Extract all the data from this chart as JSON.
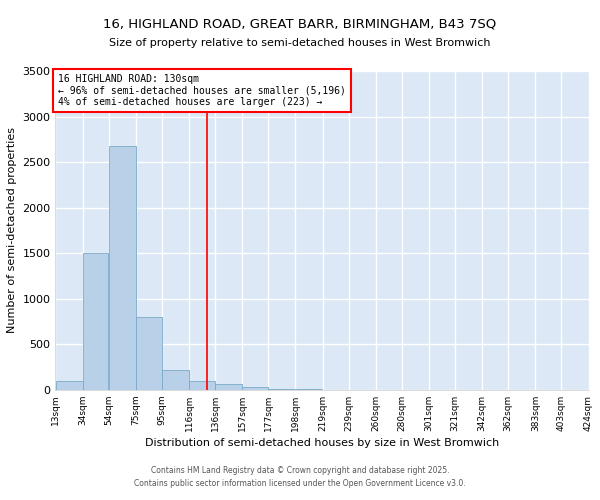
{
  "title_line1": "16, HIGHLAND ROAD, GREAT BARR, BIRMINGHAM, B43 7SQ",
  "title_line2": "Size of property relative to semi-detached houses in West Bromwich",
  "xlabel": "Distribution of semi-detached houses by size in West Bromwich",
  "ylabel": "Number of semi-detached properties",
  "footnote": "Contains HM Land Registry data © Crown copyright and database right 2025.\nContains public sector information licensed under the Open Government Licence v3.0.",
  "bar_color": "#b8d0e8",
  "bar_edge_color": "#7aaac8",
  "bg_color": "#dce8f5",
  "grid_color": "#ffffff",
  "property_line_x": 130,
  "annotation_text": "16 HIGHLAND ROAD: 130sqm\n← 96% of semi-detached houses are smaller (5,196)\n4% of semi-detached houses are larger (223) →",
  "bins": [
    13,
    34,
    54,
    75,
    95,
    116,
    136,
    157,
    177,
    198,
    219,
    239,
    260,
    280,
    301,
    321,
    342,
    362,
    383,
    403,
    424
  ],
  "counts": [
    100,
    1500,
    2680,
    800,
    215,
    100,
    65,
    35,
    10,
    5,
    2,
    0,
    0,
    0,
    0,
    0,
    0,
    0,
    0,
    0
  ],
  "ylim": [
    0,
    3500
  ],
  "yticks": [
    0,
    500,
    1000,
    1500,
    2000,
    2500,
    3000,
    3500
  ],
  "tick_labels": [
    "13sqm",
    "34sqm",
    "54sqm",
    "75sqm",
    "95sqm",
    "116sqm",
    "136sqm",
    "157sqm",
    "177sqm",
    "198sqm",
    "219sqm",
    "239sqm",
    "260sqm",
    "280sqm",
    "301sqm",
    "321sqm",
    "342sqm",
    "362sqm",
    "383sqm",
    "403sqm",
    "424sqm"
  ]
}
